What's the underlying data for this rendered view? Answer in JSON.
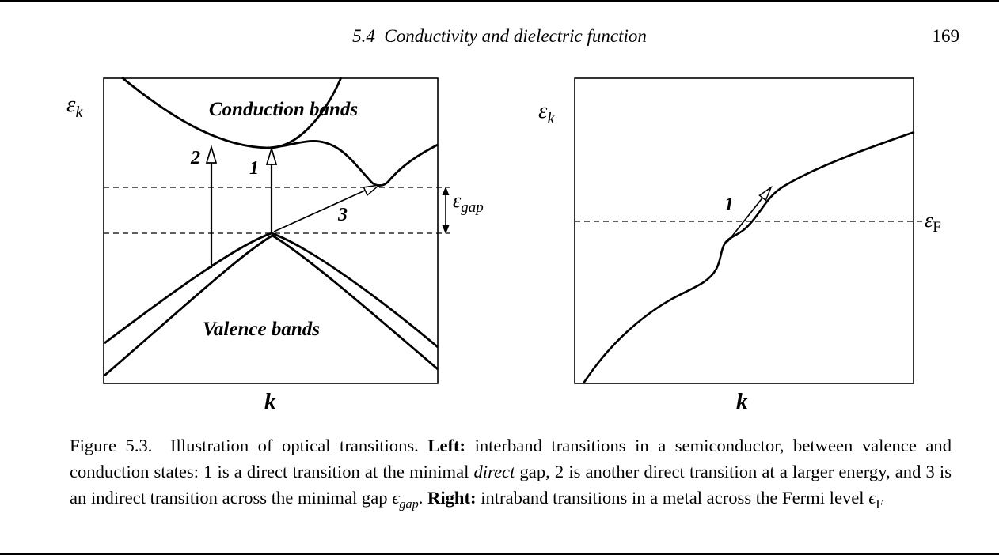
{
  "header": {
    "section_title": "5.4 Conductivity and dielectric function",
    "page_number": "169"
  },
  "left_panel": {
    "y_axis_symbol": "ε",
    "y_axis_subscript": "k",
    "x_axis_label": "k",
    "conduction_label": "Conduction bands",
    "valence_label": "Valence bands",
    "arrow1_label": "1",
    "arrow2_label": "2",
    "arrow3_label": "3",
    "gap_symbol": "ε",
    "gap_subscript": "gap"
  },
  "right_panel": {
    "y_axis_symbol": "ε",
    "y_axis_subscript": "k",
    "x_axis_label": "k",
    "fermi_symbol": "ε",
    "fermi_subscript": "F",
    "arrow1_label": "1"
  },
  "caption": {
    "segments": [
      {
        "text": "Figure 5.3.  Illustration of optical transitions. ",
        "style": "normal"
      },
      {
        "text": "Left:",
        "style": "bold"
      },
      {
        "text": " interband transitions in a semiconductor, between valence and conduction states: 1 is a direct transition at the minimal ",
        "style": "normal"
      },
      {
        "text": "direct",
        "style": "italic"
      },
      {
        "text": " gap, 2 is another direct transition at a larger energy, and 3 is an indirect transition across the minimal gap ",
        "style": "normal"
      },
      {
        "text": "ϵ",
        "style": "italic"
      },
      {
        "text": "gap",
        "style": "italic-sub"
      },
      {
        "text": ". ",
        "style": "normal"
      },
      {
        "text": "Right:",
        "style": "bold"
      },
      {
        "text": " intraband transitions in a metal across the Fermi level ",
        "style": "normal"
      },
      {
        "text": "ϵ",
        "style": "italic"
      },
      {
        "text": "F",
        "style": "sub"
      }
    ]
  },
  "colors": {
    "ink": "#000000",
    "background": "#ffffff"
  }
}
